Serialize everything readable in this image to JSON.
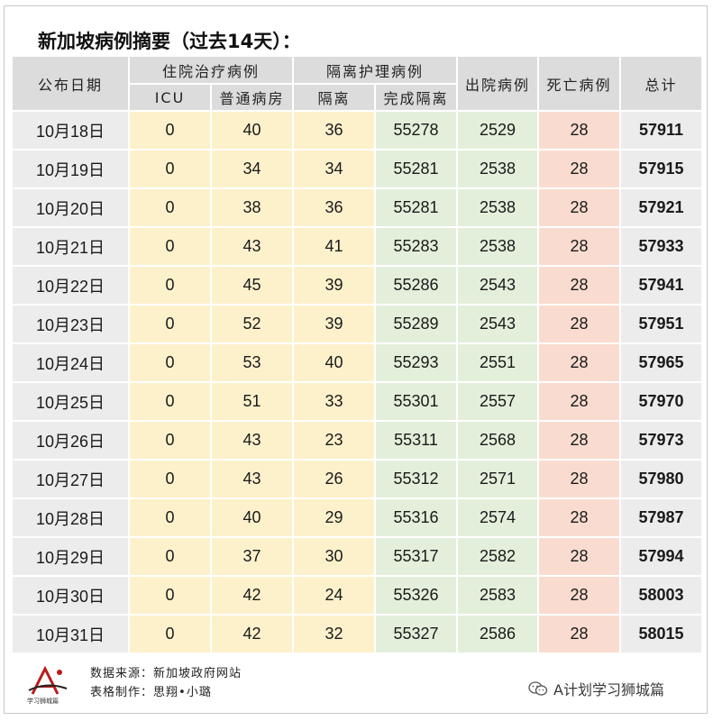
{
  "title": "新加坡病例摘要（过去14天）：",
  "headers": {
    "date": "公布日期",
    "hospital": "住院治疗病例",
    "icu": "ICU",
    "ward": "普通病房",
    "isolation_care": "隔离护理病例",
    "isolation": "隔离",
    "completed": "完成隔离",
    "discharged": "出院病例",
    "deaths": "死亡病例",
    "total": "总计"
  },
  "rows": [
    {
      "date": "10月18日",
      "icu": "0",
      "ward": "40",
      "isolation": "36",
      "completed": "55278",
      "discharged": "2529",
      "deaths": "28",
      "total": "57911"
    },
    {
      "date": "10月19日",
      "icu": "0",
      "ward": "34",
      "isolation": "34",
      "completed": "55281",
      "discharged": "2538",
      "deaths": "28",
      "total": "57915"
    },
    {
      "date": "10月20日",
      "icu": "0",
      "ward": "38",
      "isolation": "36",
      "completed": "55281",
      "discharged": "2538",
      "deaths": "28",
      "total": "57921"
    },
    {
      "date": "10月21日",
      "icu": "0",
      "ward": "43",
      "isolation": "41",
      "completed": "55283",
      "discharged": "2538",
      "deaths": "28",
      "total": "57933"
    },
    {
      "date": "10月22日",
      "icu": "0",
      "ward": "45",
      "isolation": "39",
      "completed": "55286",
      "discharged": "2543",
      "deaths": "28",
      "total": "57941"
    },
    {
      "date": "10月23日",
      "icu": "0",
      "ward": "52",
      "isolation": "39",
      "completed": "55289",
      "discharged": "2543",
      "deaths": "28",
      "total": "57951"
    },
    {
      "date": "10月24日",
      "icu": "0",
      "ward": "53",
      "isolation": "40",
      "completed": "55293",
      "discharged": "2551",
      "deaths": "28",
      "total": "57965"
    },
    {
      "date": "10月25日",
      "icu": "0",
      "ward": "51",
      "isolation": "33",
      "completed": "55301",
      "discharged": "2557",
      "deaths": "28",
      "total": "57970"
    },
    {
      "date": "10月26日",
      "icu": "0",
      "ward": "43",
      "isolation": "23",
      "completed": "55311",
      "discharged": "2568",
      "deaths": "28",
      "total": "57973"
    },
    {
      "date": "10月27日",
      "icu": "0",
      "ward": "43",
      "isolation": "26",
      "completed": "55312",
      "discharged": "2571",
      "deaths": "28",
      "total": "57980"
    },
    {
      "date": "10月28日",
      "icu": "0",
      "ward": "40",
      "isolation": "29",
      "completed": "55316",
      "discharged": "2574",
      "deaths": "28",
      "total": "57987"
    },
    {
      "date": "10月29日",
      "icu": "0",
      "ward": "37",
      "isolation": "30",
      "completed": "55317",
      "discharged": "2582",
      "deaths": "28",
      "total": "57994"
    },
    {
      "date": "10月30日",
      "icu": "0",
      "ward": "42",
      "isolation": "24",
      "completed": "55326",
      "discharged": "2583",
      "deaths": "28",
      "total": "58003"
    },
    {
      "date": "10月31日",
      "icu": "0",
      "ward": "42",
      "isolation": "32",
      "completed": "55327",
      "discharged": "2586",
      "deaths": "28",
      "total": "58015"
    }
  ],
  "footer": {
    "source": "数据来源：新加坡政府网站",
    "author": "表格制作：思翔•小璐",
    "logo_text": "学习狮城篇",
    "wechat_label": "A计划学习狮城篇"
  },
  "colors": {
    "header_gray": "#dcdcdc",
    "date_gray": "#ececec",
    "hospital_yellow": "#fdf1cc",
    "isolation_green": "#e3efdb",
    "deaths_red": "#f9dccf",
    "total_gray": "#ececec"
  }
}
